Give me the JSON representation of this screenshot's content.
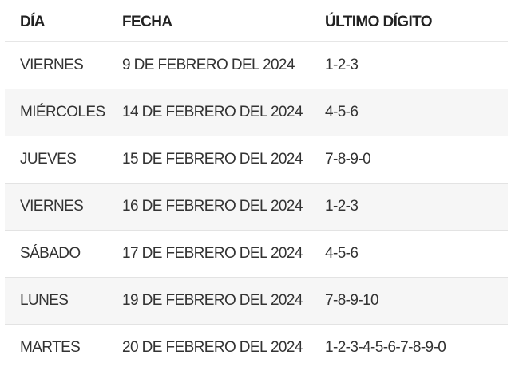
{
  "table": {
    "headers": [
      "DÍA",
      "FECHA",
      "ÚLTIMO DÍGITO"
    ],
    "rows": [
      [
        "VIERNES",
        "9 DE FEBRERO DEL 2024",
        "1-2-3"
      ],
      [
        "MIÉRCOLES",
        "14 DE FEBRERO DEL 2024",
        "4-5-6"
      ],
      [
        "JUEVES",
        "15 DE FEBRERO DEL 2024",
        "7-8-9-0"
      ],
      [
        "VIERNES",
        "16 DE FEBRERO DEL 2024",
        "1-2-3"
      ],
      [
        "SÁBADO",
        "17 DE FEBRERO DEL 2024",
        "4-5-6"
      ],
      [
        "LUNES",
        "19 DE FEBRERO DEL 2024",
        "7-8-9-10"
      ],
      [
        "MARTES",
        "20 DE FEBRERO DEL 2024",
        "1-2-3-4-5-6-7-8-9-0"
      ]
    ]
  }
}
